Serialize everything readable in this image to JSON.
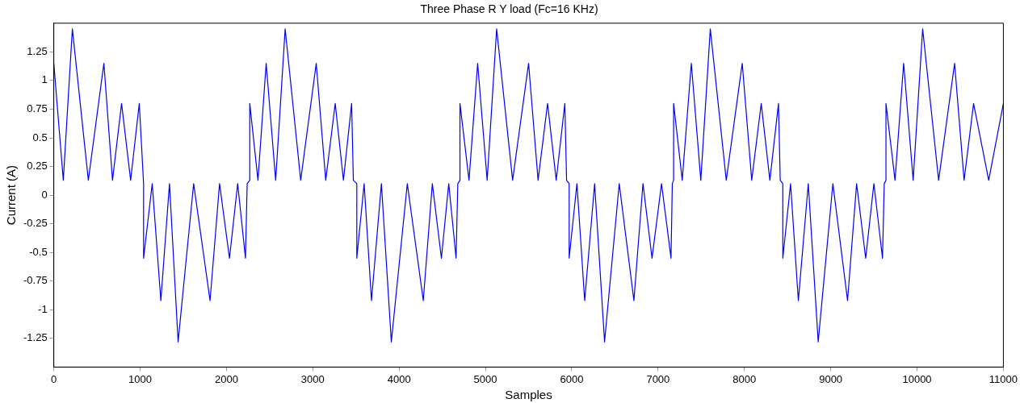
{
  "chart_data": {
    "type": "line",
    "title": "Three Phase R Y load (Fc=16 KHz)",
    "xlabel": "Samples",
    "ylabel": "Current (A)",
    "xlim": [
      0,
      11000
    ],
    "xticks": [
      0,
      1000,
      2000,
      3000,
      4000,
      5000,
      6000,
      7000,
      8000,
      9000,
      10000,
      11000
    ],
    "ylim": [
      -1.5,
      1.5
    ],
    "yticks": [
      -1.25,
      -1,
      -0.75,
      -0.5,
      -0.25,
      0,
      0.25,
      0.5,
      0.75,
      1,
      1.25
    ],
    "grid": false,
    "marker": "none",
    "line_style": "solid",
    "series": [
      {
        "color": "#0000ff",
        "x": [
          0,
          110,
          215,
          400,
          580,
          680,
          785,
          890,
          990,
          1040,
          1040,
          1140,
          1240,
          1340,
          1440,
          1620,
          1810,
          1920,
          2035,
          2130,
          2220,
          2240,
          2270,
          2270,
          2365,
          2460,
          2570,
          2680,
          2860,
          3040,
          3150,
          3260,
          3355,
          3450,
          3470,
          3510,
          3510,
          3595,
          3680,
          3795,
          3910,
          4095,
          4280,
          4385,
          4490,
          4575,
          4660,
          4680,
          4705,
          4705,
          4810,
          4910,
          5020,
          5130,
          5315,
          5500,
          5610,
          5720,
          5820,
          5920,
          5940,
          5970,
          5970,
          6060,
          6150,
          6265,
          6380,
          6550,
          6720,
          6825,
          6930,
          7040,
          7150,
          7165,
          7180,
          7180,
          7280,
          7385,
          7495,
          7605,
          7790,
          7975,
          8085,
          8195,
          8295,
          8395,
          8415,
          8445,
          8445,
          8535,
          8625,
          8740,
          8855,
          9025,
          9195,
          9300,
          9405,
          9500,
          9600,
          9620,
          9640,
          9640,
          9745,
          9845,
          9955,
          10065,
          10250,
          10435,
          10545,
          10655,
          10830,
          11000
        ],
        "values": [
          1.15,
          0.13,
          1.45,
          0.13,
          1.15,
          0.13,
          0.8,
          0.13,
          0.8,
          0.1,
          -0.55,
          0.1,
          -0.92,
          0.1,
          -1.28,
          0.1,
          -0.92,
          0.1,
          -0.55,
          0.1,
          -0.55,
          0.1,
          0.13,
          0.8,
          0.13,
          1.15,
          0.13,
          1.45,
          0.13,
          1.15,
          0.13,
          0.8,
          0.13,
          0.8,
          0.13,
          0.1,
          -0.55,
          0.1,
          -0.92,
          0.1,
          -1.28,
          0.1,
          -0.92,
          0.1,
          -0.55,
          0.1,
          -0.55,
          0.1,
          0.13,
          0.8,
          0.13,
          1.15,
          0.13,
          1.45,
          0.13,
          1.15,
          0.13,
          0.8,
          0.13,
          0.8,
          0.13,
          0.1,
          -0.55,
          0.1,
          -0.92,
          0.1,
          -1.28,
          0.1,
          -0.92,
          0.1,
          -0.55,
          0.1,
          -0.55,
          0.1,
          0.13,
          0.8,
          0.13,
          1.15,
          0.13,
          1.45,
          0.13,
          1.15,
          0.13,
          0.8,
          0.13,
          0.8,
          0.13,
          0.1,
          -0.55,
          0.1,
          -0.92,
          0.1,
          -1.28,
          0.1,
          -0.92,
          0.1,
          -0.55,
          0.1,
          -0.55,
          0.1,
          0.13,
          0.8,
          0.13,
          1.15,
          0.13,
          1.45,
          0.13,
          1.15,
          0.13,
          0.8,
          0.13,
          0.8
        ]
      }
    ]
  }
}
